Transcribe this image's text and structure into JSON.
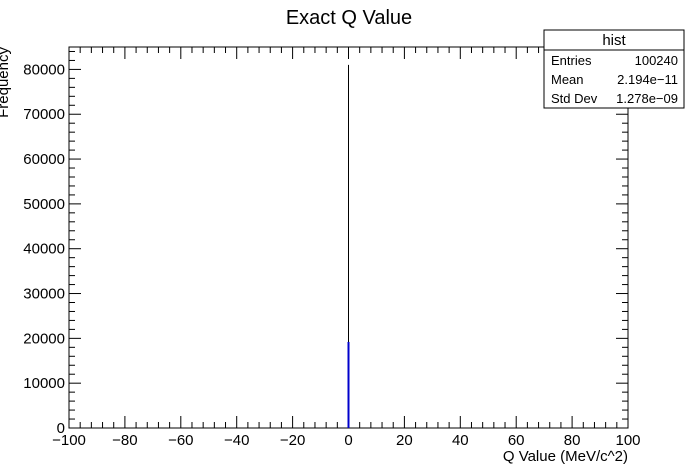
{
  "chart_data": {
    "type": "bar",
    "title": "Exact Q Value",
    "xlabel": "Q Value (MeV/c^2)",
    "ylabel": "Frequency",
    "xlim": [
      -100,
      100
    ],
    "ylim": [
      0,
      85000
    ],
    "x_ticks": [
      -100,
      -80,
      -60,
      -40,
      -20,
      0,
      20,
      40,
      60,
      80,
      100
    ],
    "x_tick_labels": [
      "−100",
      "−80",
      "−60",
      "−40",
      "−20",
      "0",
      "20",
      "40",
      "60",
      "80",
      "100"
    ],
    "y_ticks": [
      0,
      10000,
      20000,
      30000,
      40000,
      50000,
      60000,
      70000,
      80000
    ],
    "y_tick_labels": [
      "0",
      "10000",
      "20000",
      "30000",
      "40000",
      "50000",
      "60000",
      "70000",
      "80000"
    ],
    "bins": [
      {
        "x": 0,
        "value": 81000,
        "color": "#000000"
      },
      {
        "x": 0,
        "value": 19200,
        "color": "#0000cc"
      }
    ],
    "grid": false,
    "stats_box": {
      "title": "hist",
      "rows": [
        {
          "label": "Entries",
          "value": "100240"
        },
        {
          "label": "Mean",
          "value": "2.194e−11"
        },
        {
          "label": "Std Dev",
          "value": "1.278e−09"
        }
      ],
      "position": "top-right"
    }
  }
}
